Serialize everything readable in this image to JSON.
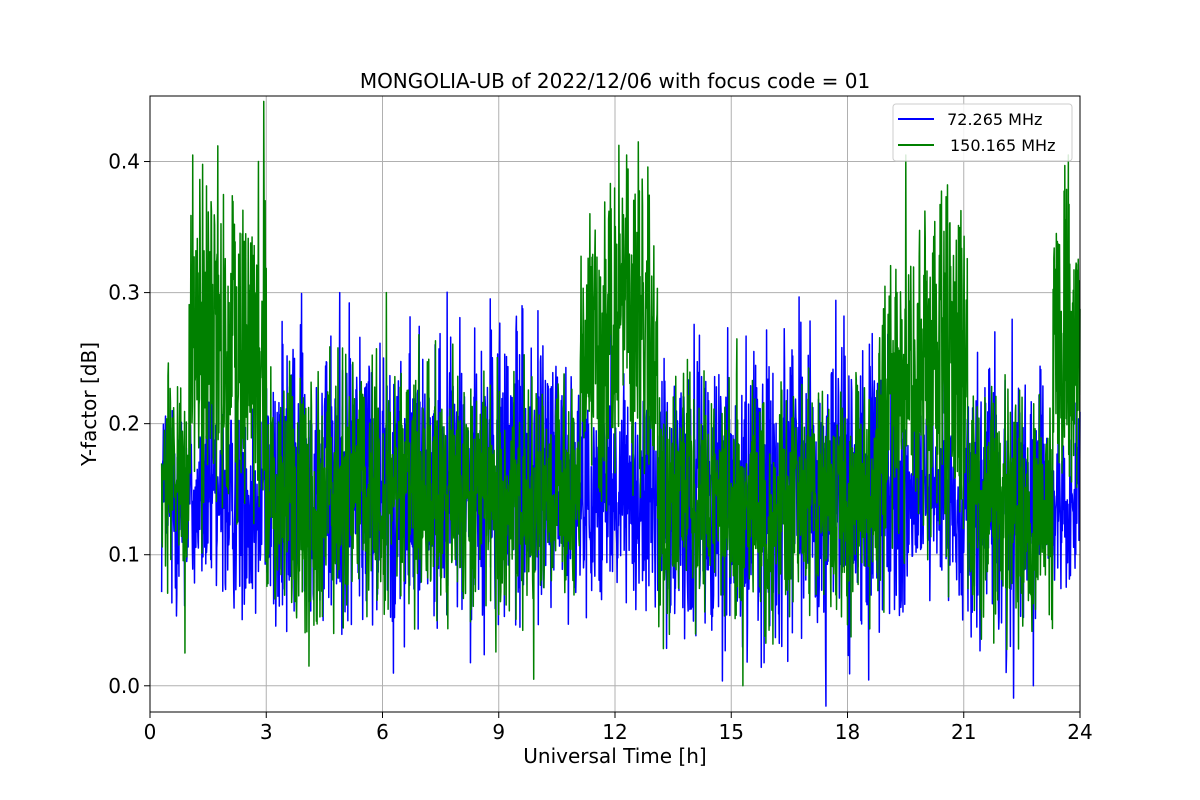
{
  "chart_data": {
    "type": "line",
    "title": "MONGOLIA-UB of 2022/12/06 with focus code = 01",
    "xlabel": "Universal Time [h]",
    "ylabel": "Y-factor [dB]",
    "xlim": [
      0,
      24
    ],
    "ylim": [
      -0.02,
      0.45
    ],
    "x_ticks": [
      0,
      3,
      6,
      9,
      12,
      15,
      18,
      21,
      24
    ],
    "x_tick_labels": [
      "0",
      "3",
      "6",
      "9",
      "12",
      "15",
      "18",
      "21",
      "24"
    ],
    "y_ticks": [
      0.0,
      0.1,
      0.2,
      0.3,
      0.4
    ],
    "y_tick_labels": [
      "0.0",
      "0.1",
      "0.2",
      "0.3",
      "0.4"
    ],
    "grid": true,
    "legend_position": "top-right",
    "series": [
      {
        "name": " 72.265 MHz",
        "color": "#0000ff",
        "x_range": [
          0.3,
          24
        ],
        "segments": [
          {
            "x": [
              0.3,
              1.0
            ],
            "y_low": 0.07,
            "y_high": 0.23
          },
          {
            "x": [
              1.0,
              3.0
            ],
            "y_low": 0.07,
            "y_high": 0.21
          },
          {
            "x": [
              3.0,
              11.1
            ],
            "y_low": 0.05,
            "y_high": 0.26
          },
          {
            "x": [
              11.1,
              13.1
            ],
            "y_low": 0.07,
            "y_high": 0.22
          },
          {
            "x": [
              13.1,
              19.5
            ],
            "y_low": 0.04,
            "y_high": 0.25
          },
          {
            "x": [
              19.5,
              21.1
            ],
            "y_low": 0.08,
            "y_high": 0.2
          },
          {
            "x": [
              21.1,
              23.2
            ],
            "y_low": 0.04,
            "y_high": 0.24
          },
          {
            "x": [
              23.2,
              24.0
            ],
            "y_low": 0.08,
            "y_high": 0.2
          }
        ],
        "peaks": [
          [
            4.9,
            0.3
          ],
          [
            9.6,
            0.29
          ],
          [
            11.9,
            0.27
          ],
          [
            21.8,
            0.27
          ],
          [
            22.8,
            0.0
          ],
          [
            16.3,
            0.03
          ],
          [
            22.2,
            0.03
          ]
        ]
      },
      {
        "name": "150.165 MHz",
        "color": "#008000",
        "x_range": [
          0.3,
          24
        ],
        "segments": [
          {
            "x": [
              0.3,
              1.0
            ],
            "y_low": 0.09,
            "y_high": 0.23
          },
          {
            "x": [
              1.0,
              3.0
            ],
            "y_low": 0.14,
            "y_high": 0.39
          },
          {
            "x": [
              3.0,
              11.1
            ],
            "y_low": 0.06,
            "y_high": 0.23
          },
          {
            "x": [
              11.1,
              13.1
            ],
            "y_low": 0.14,
            "y_high": 0.38
          },
          {
            "x": [
              13.1,
              18.8
            ],
            "y_low": 0.06,
            "y_high": 0.23
          },
          {
            "x": [
              18.8,
              19.6
            ],
            "y_low": 0.1,
            "y_high": 0.32
          },
          {
            "x": [
              19.6,
              21.1
            ],
            "y_low": 0.12,
            "y_high": 0.38
          },
          {
            "x": [
              21.1,
              23.3
            ],
            "y_low": 0.05,
            "y_high": 0.22
          },
          {
            "x": [
              23.3,
              24.0
            ],
            "y_low": 0.14,
            "y_high": 0.38
          }
        ],
        "peaks": [
          [
            1.1,
            0.405
          ],
          [
            12.3,
            0.405
          ],
          [
            12.6,
            0.415
          ],
          [
            19.5,
            0.405
          ],
          [
            23.7,
            0.405
          ],
          [
            2.8,
            0.4
          ],
          [
            6.1,
            0.3
          ],
          [
            15.3,
            0.0
          ],
          [
            4.1,
            0.015
          ],
          [
            9.9,
            0.005
          ],
          [
            0.9,
            0.025
          ]
        ]
      }
    ]
  }
}
